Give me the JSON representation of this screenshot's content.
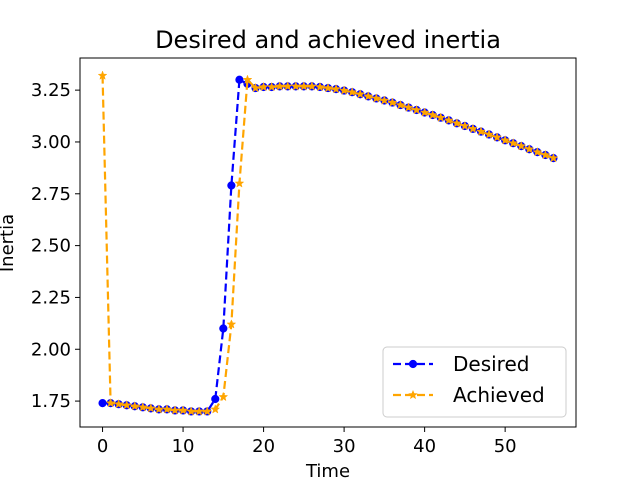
{
  "chart_data": {
    "type": "line",
    "title": "Desired and achieved inertia",
    "xlabel": "Time",
    "ylabel": "Inertia",
    "xlim": [
      -2.8,
      58.8
    ],
    "ylim": [
      1.625,
      3.405
    ],
    "xticks": [
      0,
      10,
      20,
      30,
      40,
      50
    ],
    "yticks": [
      1.75,
      2.0,
      2.25,
      2.5,
      2.75,
      3.0,
      3.25
    ],
    "ytick_labels": [
      "1.75",
      "2.00",
      "2.25",
      "2.50",
      "2.75",
      "3.00",
      "3.25"
    ],
    "grid": false,
    "legend_position": "bottom-right",
    "x": [
      0,
      1,
      2,
      3,
      4,
      5,
      6,
      7,
      8,
      9,
      10,
      11,
      12,
      13,
      14,
      15,
      16,
      17,
      18,
      19,
      20,
      21,
      22,
      23,
      24,
      25,
      26,
      27,
      28,
      29,
      30,
      31,
      32,
      33,
      34,
      35,
      36,
      37,
      38,
      39,
      40,
      41,
      42,
      43,
      44,
      45,
      46,
      47,
      48,
      49,
      50,
      51,
      52,
      53,
      54,
      55,
      56
    ],
    "series": [
      {
        "name": "Desired",
        "color": "#0000ff",
        "marker": "circle",
        "linestyle": "dashed",
        "values": [
          1.74,
          1.74,
          1.735,
          1.73,
          1.725,
          1.72,
          1.715,
          1.71,
          1.71,
          1.705,
          1.705,
          1.7,
          1.7,
          1.7,
          1.76,
          2.1,
          2.79,
          3.3,
          3.28,
          3.26,
          3.265,
          3.265,
          3.268,
          3.268,
          3.268,
          3.268,
          3.268,
          3.265,
          3.26,
          3.255,
          3.248,
          3.24,
          3.23,
          3.22,
          3.21,
          3.2,
          3.19,
          3.178,
          3.166,
          3.154,
          3.142,
          3.13,
          3.117,
          3.104,
          3.09,
          3.077,
          3.063,
          3.05,
          3.036,
          3.022,
          3.008,
          2.994,
          2.98,
          2.965,
          2.951,
          2.937,
          2.922
        ]
      },
      {
        "name": "Achieved",
        "color": "#ffa500",
        "marker": "star",
        "linestyle": "dashed",
        "values": [
          3.32,
          1.74,
          1.735,
          1.73,
          1.725,
          1.72,
          1.715,
          1.71,
          1.71,
          1.705,
          1.705,
          1.7,
          1.7,
          1.7,
          1.71,
          1.77,
          2.12,
          2.8,
          3.3,
          3.26,
          3.265,
          3.265,
          3.268,
          3.268,
          3.268,
          3.268,
          3.268,
          3.265,
          3.26,
          3.255,
          3.248,
          3.24,
          3.23,
          3.22,
          3.21,
          3.2,
          3.19,
          3.178,
          3.166,
          3.154,
          3.142,
          3.13,
          3.117,
          3.104,
          3.09,
          3.077,
          3.063,
          3.05,
          3.036,
          3.022,
          3.008,
          2.994,
          2.98,
          2.965,
          2.951,
          2.937,
          2.922
        ]
      }
    ]
  }
}
